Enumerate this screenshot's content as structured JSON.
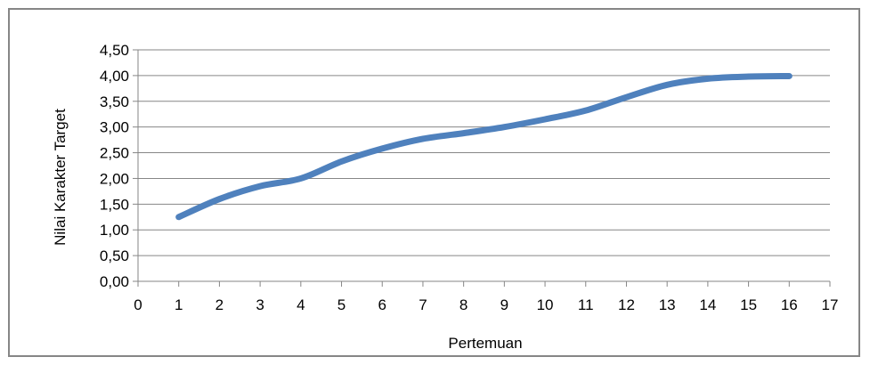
{
  "chart_data": {
    "type": "line",
    "title": "",
    "xlabel": "Pertemuan",
    "ylabel": "Nilai Karakter Target",
    "xlim": [
      0,
      17
    ],
    "ylim": [
      0,
      4.5
    ],
    "x_ticks": [
      "0",
      "1",
      "2",
      "3",
      "4",
      "5",
      "6",
      "7",
      "8",
      "9",
      "10",
      "11",
      "12",
      "13",
      "14",
      "15",
      "16",
      "17"
    ],
    "y_ticks": [
      "0,00",
      "0,50",
      "1,00",
      "1,50",
      "2,00",
      "2,50",
      "3,00",
      "3,50",
      "4,00",
      "4,50"
    ],
    "grid": true,
    "legend": "none",
    "line_color": "#4F81BD",
    "series": [
      {
        "x": [
          1,
          2,
          3,
          4,
          5,
          6,
          7,
          8,
          9,
          10,
          11,
          12,
          13,
          14,
          15,
          16
        ],
        "values": [
          1.25,
          1.6,
          1.85,
          2.0,
          2.33,
          2.58,
          2.77,
          2.88,
          3.0,
          3.15,
          3.32,
          3.58,
          3.82,
          3.94,
          3.98,
          3.99
        ]
      }
    ]
  }
}
